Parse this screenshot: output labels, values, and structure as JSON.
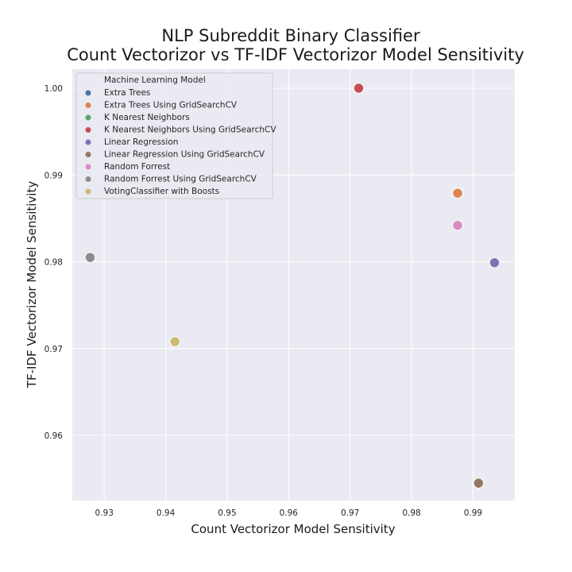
{
  "chart_data": {
    "type": "scatter",
    "title": [
      "NLP Subreddit Binary Classifier",
      "Count Vectorizor vs TF-IDF Vectorizor Model Sensitivity"
    ],
    "xlabel": "Count Vectorizor Model Sensitivity",
    "ylabel": "TF-IDF Vectorizor Model Sensitivity",
    "xlim": [
      0.9248,
      0.9968
    ],
    "ylim": [
      0.9525,
      1.0022
    ],
    "xticks": [
      0.93,
      0.94,
      0.95,
      0.96,
      0.97,
      0.98,
      0.99
    ],
    "xtick_labels": [
      "0.93",
      "0.94",
      "0.95",
      "0.96",
      "0.97",
      "0.98",
      "0.99"
    ],
    "yticks": [
      0.96,
      0.97,
      0.98,
      0.99,
      1.0
    ],
    "ytick_labels": [
      "0.96",
      "0.97",
      "0.98",
      "0.99",
      "1.00"
    ],
    "grid": true,
    "legend": {
      "title": "Machine Learning Model",
      "placement": "top-left"
    },
    "series": [
      {
        "name": "Extra Trees",
        "color": "#4c72b0",
        "points": [
          [
            0.9875,
            0.9879
          ]
        ]
      },
      {
        "name": "Extra Trees Using GridSearchCV",
        "color": "#dd8452",
        "points": [
          [
            0.9875,
            0.9879
          ]
        ]
      },
      {
        "name": "K Nearest Neighbors",
        "color": "#55a868",
        "points": [
          [
            0.9714,
            1.0
          ]
        ]
      },
      {
        "name": "K Nearest Neighbors Using GridSearchCV",
        "color": "#c44e52",
        "points": [
          [
            0.9714,
            1.0
          ]
        ]
      },
      {
        "name": "Linear Regression",
        "color": "#8172b3",
        "points": [
          [
            0.9935,
            0.9799
          ]
        ]
      },
      {
        "name": "Linear Regression Using GridSearchCV",
        "color": "#937860",
        "points": [
          [
            0.9909,
            0.9545
          ]
        ]
      },
      {
        "name": "Random Forrest",
        "color": "#da8bc3",
        "points": [
          [
            0.9875,
            0.9842
          ]
        ]
      },
      {
        "name": "Random Forrest Using GridSearchCV",
        "color": "#8c8c8c",
        "points": [
          [
            0.9277,
            0.9805
          ]
        ]
      },
      {
        "name": "VotingClassifier with Boosts",
        "color": "#ccb974",
        "points": [
          [
            0.9415,
            0.9708
          ]
        ]
      }
    ]
  }
}
